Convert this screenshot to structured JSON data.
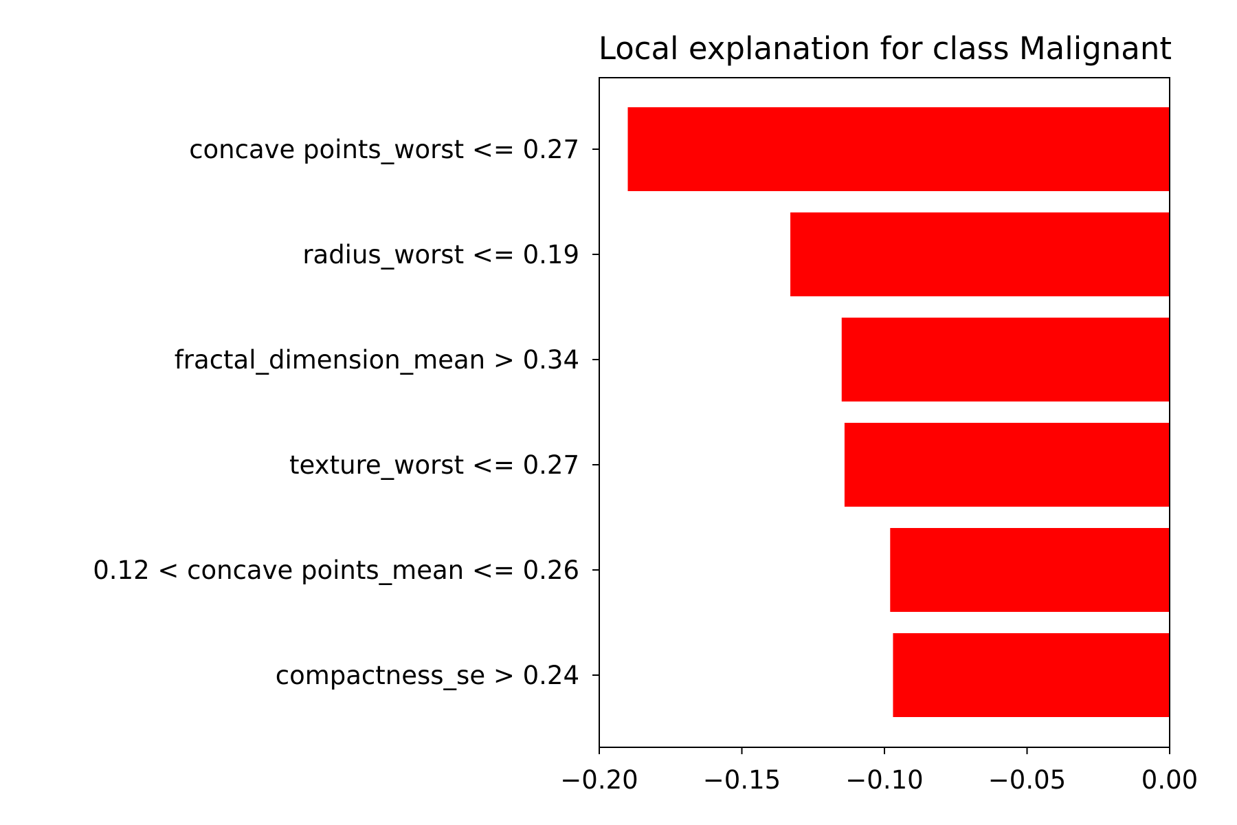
{
  "chart_data": {
    "type": "bar",
    "orientation": "horizontal",
    "title": "Local explanation for class Malignant",
    "xlabel": "",
    "ylabel": "",
    "categories": [
      "concave points_worst <= 0.27",
      "radius_worst <= 0.19",
      "fractal_dimension_mean > 0.34",
      "texture_worst <= 0.27",
      "0.12 < concave points_mean <= 0.26",
      "compactness_se > 0.24"
    ],
    "values": [
      -0.19,
      -0.133,
      -0.115,
      -0.114,
      -0.098,
      -0.097
    ],
    "xlim": [
      -0.2,
      0.0
    ],
    "xticks": [
      -0.2,
      -0.15,
      -0.1,
      -0.05,
      0.0
    ],
    "xtick_labels": [
      "−0.20",
      "−0.15",
      "−0.10",
      "−0.05",
      "0.00"
    ],
    "bar_color": "#ff0000",
    "grid": false,
    "legend": "none"
  }
}
